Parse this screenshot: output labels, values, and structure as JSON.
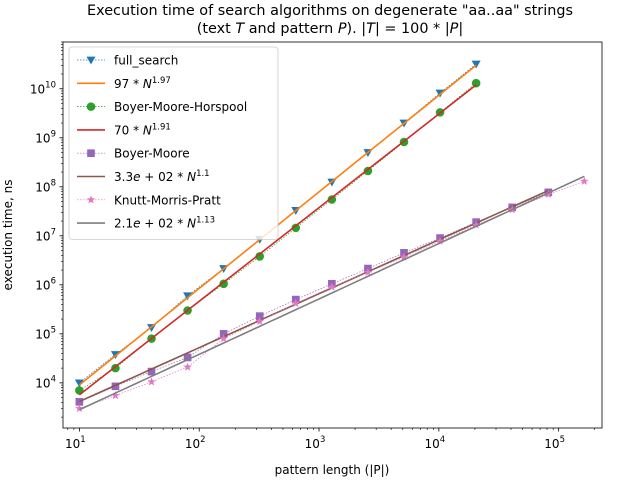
{
  "chart_data": {
    "type": "line",
    "title": "Execution time of search algorithms on degenerate \"aa..aa\" strings",
    "subtitle_parts": [
      "(text ",
      "T",
      " and pattern ",
      "P",
      "). |",
      "T",
      "| = 100 * |",
      "P",
      "|"
    ],
    "xlabel": "pattern length (|P|)",
    "ylabel": "execution time, ns",
    "xscale": "log",
    "yscale": "log",
    "xlim": [
      7.3,
      230000
    ],
    "ylim": [
      1200,
      90000000000
    ],
    "grid": false,
    "legend_position": "upper-left",
    "x_ticks": [
      {
        "value": 10,
        "base": "10",
        "exp": "1"
      },
      {
        "value": 100,
        "base": "10",
        "exp": "2"
      },
      {
        "value": 1000,
        "base": "10",
        "exp": "3"
      },
      {
        "value": 10000,
        "base": "10",
        "exp": "4"
      },
      {
        "value": 100000,
        "base": "10",
        "exp": "5"
      }
    ],
    "y_ticks": [
      {
        "value": 10000,
        "base": "10",
        "exp": "4"
      },
      {
        "value": 100000,
        "base": "10",
        "exp": "5"
      },
      {
        "value": 1000000,
        "base": "10",
        "exp": "6"
      },
      {
        "value": 10000000,
        "base": "10",
        "exp": "7"
      },
      {
        "value": 100000000,
        "base": "10",
        "exp": "8"
      },
      {
        "value": 1000000000,
        "base": "10",
        "exp": "9"
      },
      {
        "value": 10000000000,
        "base": "10",
        "exp": "10"
      }
    ],
    "series": [
      {
        "name": "full_search",
        "kind": "markers",
        "marker": "triangle-down",
        "color": "#1f77b4",
        "x": [
          10,
          20,
          40,
          80,
          160,
          320,
          640,
          1280,
          2560,
          5120,
          10240,
          20480
        ],
        "y": [
          10000,
          38000,
          135000,
          600000,
          2150000,
          8500000,
          33000000,
          125000000,
          500000000,
          2000000000,
          8200000000,
          32000000000
        ]
      },
      {
        "name": "97 * N^1.97",
        "label_parts": [
          "97 * ",
          "N",
          "1.97"
        ],
        "kind": "fit",
        "color": "#ff7f0e",
        "coef": 97,
        "exponent": 1.97,
        "x_range": [
          10,
          20480
        ]
      },
      {
        "name": "Boyer-Moore-Horspool",
        "kind": "markers",
        "marker": "circle",
        "color": "#2ca02c",
        "x": [
          10,
          20,
          40,
          80,
          160,
          320,
          640,
          1280,
          2560,
          5120,
          10240,
          20480
        ],
        "y": [
          7000,
          20000,
          80000,
          300000,
          1050000,
          3800000,
          14500000,
          55000000,
          210000000,
          820000000,
          3300000000,
          13000000000
        ]
      },
      {
        "name": "70 * N^1.91",
        "label_parts": [
          "70 * ",
          "N",
          "1.91"
        ],
        "kind": "fit",
        "color": "#d62728",
        "coef": 70,
        "exponent": 1.91,
        "x_range": [
          10,
          20480
        ]
      },
      {
        "name": "Boyer-Moore",
        "kind": "markers",
        "marker": "square",
        "color": "#9467bd",
        "x": [
          10,
          20,
          40,
          80,
          160,
          320,
          640,
          1280,
          2560,
          5120,
          10240,
          20480,
          40960,
          81920
        ],
        "y": [
          4100,
          8500,
          17000,
          33000,
          100000,
          230000,
          500000,
          1050000,
          2150000,
          4500000,
          9000000,
          19000000,
          38000000,
          77000000
        ]
      },
      {
        "name": "3.3e+02 * N^1.1",
        "label_parts": [
          "3.3",
          "e",
          " + 02 * ",
          "N",
          "1.1"
        ],
        "kind": "fit",
        "color": "#8c564b",
        "coef": 330,
        "exponent": 1.1,
        "x_range": [
          10,
          81920
        ]
      },
      {
        "name": "Knutt-Morris-Pratt",
        "kind": "markers",
        "marker": "star",
        "color": "#e377c2",
        "x": [
          10,
          20,
          40,
          80,
          160,
          320,
          640,
          1280,
          2560,
          5120,
          10240,
          20480,
          40960,
          81920,
          163840
        ],
        "y": [
          3000,
          5500,
          10500,
          21000,
          80000,
          180000,
          420000,
          900000,
          1800000,
          3700000,
          7800000,
          16500000,
          34000000,
          70000000,
          130000000
        ]
      },
      {
        "name": "2.1e+02 * N^1.13",
        "label_parts": [
          "2.1",
          "e",
          " + 02 * ",
          "N",
          "1.13"
        ],
        "kind": "fit",
        "color": "#7f7f7f",
        "coef": 210,
        "exponent": 1.13,
        "x_range": [
          10,
          163840
        ]
      }
    ]
  }
}
